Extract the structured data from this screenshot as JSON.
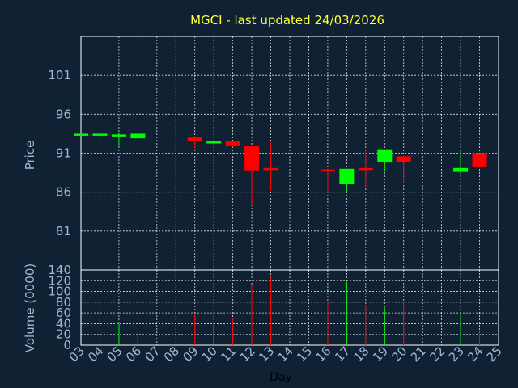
{
  "chart_data": {
    "type": "candlestick",
    "title": "MGCI - last updated 24/03/2026",
    "xlabel": "Day",
    "ylabel_price": "Price",
    "ylabel_volume": "Volume (0000)",
    "x_ticks": [
      "03",
      "04",
      "05",
      "06",
      "07",
      "08",
      "09",
      "10",
      "11",
      "12",
      "13",
      "14",
      "15",
      "16",
      "17",
      "18",
      "19",
      "20",
      "21",
      "22",
      "23",
      "24",
      "25"
    ],
    "price_ticks": [
      81,
      86,
      91,
      96,
      101
    ],
    "price_range": [
      76,
      106
    ],
    "volume_ticks": [
      0,
      20,
      40,
      60,
      80,
      100,
      120,
      140
    ],
    "volume_range": [
      0,
      140
    ],
    "colors": {
      "up": "#00ff00",
      "down": "#ff0000",
      "title": "#ffff33",
      "axis_text": "#9db9d6",
      "background": "#0f2133"
    },
    "candles": [
      {
        "day": "03",
        "open": 93.5,
        "close": 93.5,
        "high": 93.5,
        "low": 93.5,
        "volume": 0
      },
      {
        "day": "04",
        "open": 93.4,
        "close": 93.5,
        "high": 93.5,
        "low": 92.0,
        "volume": 85
      },
      {
        "day": "05",
        "open": 93.3,
        "close": 93.4,
        "high": 93.4,
        "low": 92.0,
        "volume": 42
      },
      {
        "day": "06",
        "open": 92.9,
        "close": 93.5,
        "high": 93.6,
        "low": 92.9,
        "volume": 18
      },
      {
        "day": "09",
        "open": 93.0,
        "close": 92.5,
        "high": 93.2,
        "low": 91.6,
        "volume": 60
      },
      {
        "day": "10",
        "open": 92.4,
        "close": 92.5,
        "high": 92.6,
        "low": 92.4,
        "volume": 42
      },
      {
        "day": "11",
        "open": 92.6,
        "close": 92.0,
        "high": 92.6,
        "low": 91.8,
        "volume": 50
      },
      {
        "day": "12",
        "open": 91.9,
        "close": 88.8,
        "high": 91.9,
        "low": 84.3,
        "volume": 112
      },
      {
        "day": "13",
        "open": 89.1,
        "close": 88.9,
        "high": 92.6,
        "low": 86.2,
        "volume": 127
      },
      {
        "day": "16",
        "open": 88.9,
        "close": 88.7,
        "high": 88.9,
        "low": 85.9,
        "volume": 80
      },
      {
        "day": "17",
        "open": 87.0,
        "close": 89.0,
        "high": 89.0,
        "low": 85.9,
        "volume": 118
      },
      {
        "day": "18",
        "open": 89.1,
        "close": 88.9,
        "high": 91.6,
        "low": 86.7,
        "volume": 75
      },
      {
        "day": "19",
        "open": 89.8,
        "close": 91.5,
        "high": 91.5,
        "low": 88.6,
        "volume": 70
      },
      {
        "day": "20",
        "open": 90.6,
        "close": 89.9,
        "high": 90.6,
        "low": 87.2,
        "volume": 80
      },
      {
        "day": "23",
        "open": 88.6,
        "close": 89.1,
        "high": 91.3,
        "low": 88.4,
        "volume": 60
      },
      {
        "day": "24",
        "open": 91.0,
        "close": 89.3,
        "high": 91.0,
        "low": 89.3,
        "volume": 25
      }
    ]
  }
}
